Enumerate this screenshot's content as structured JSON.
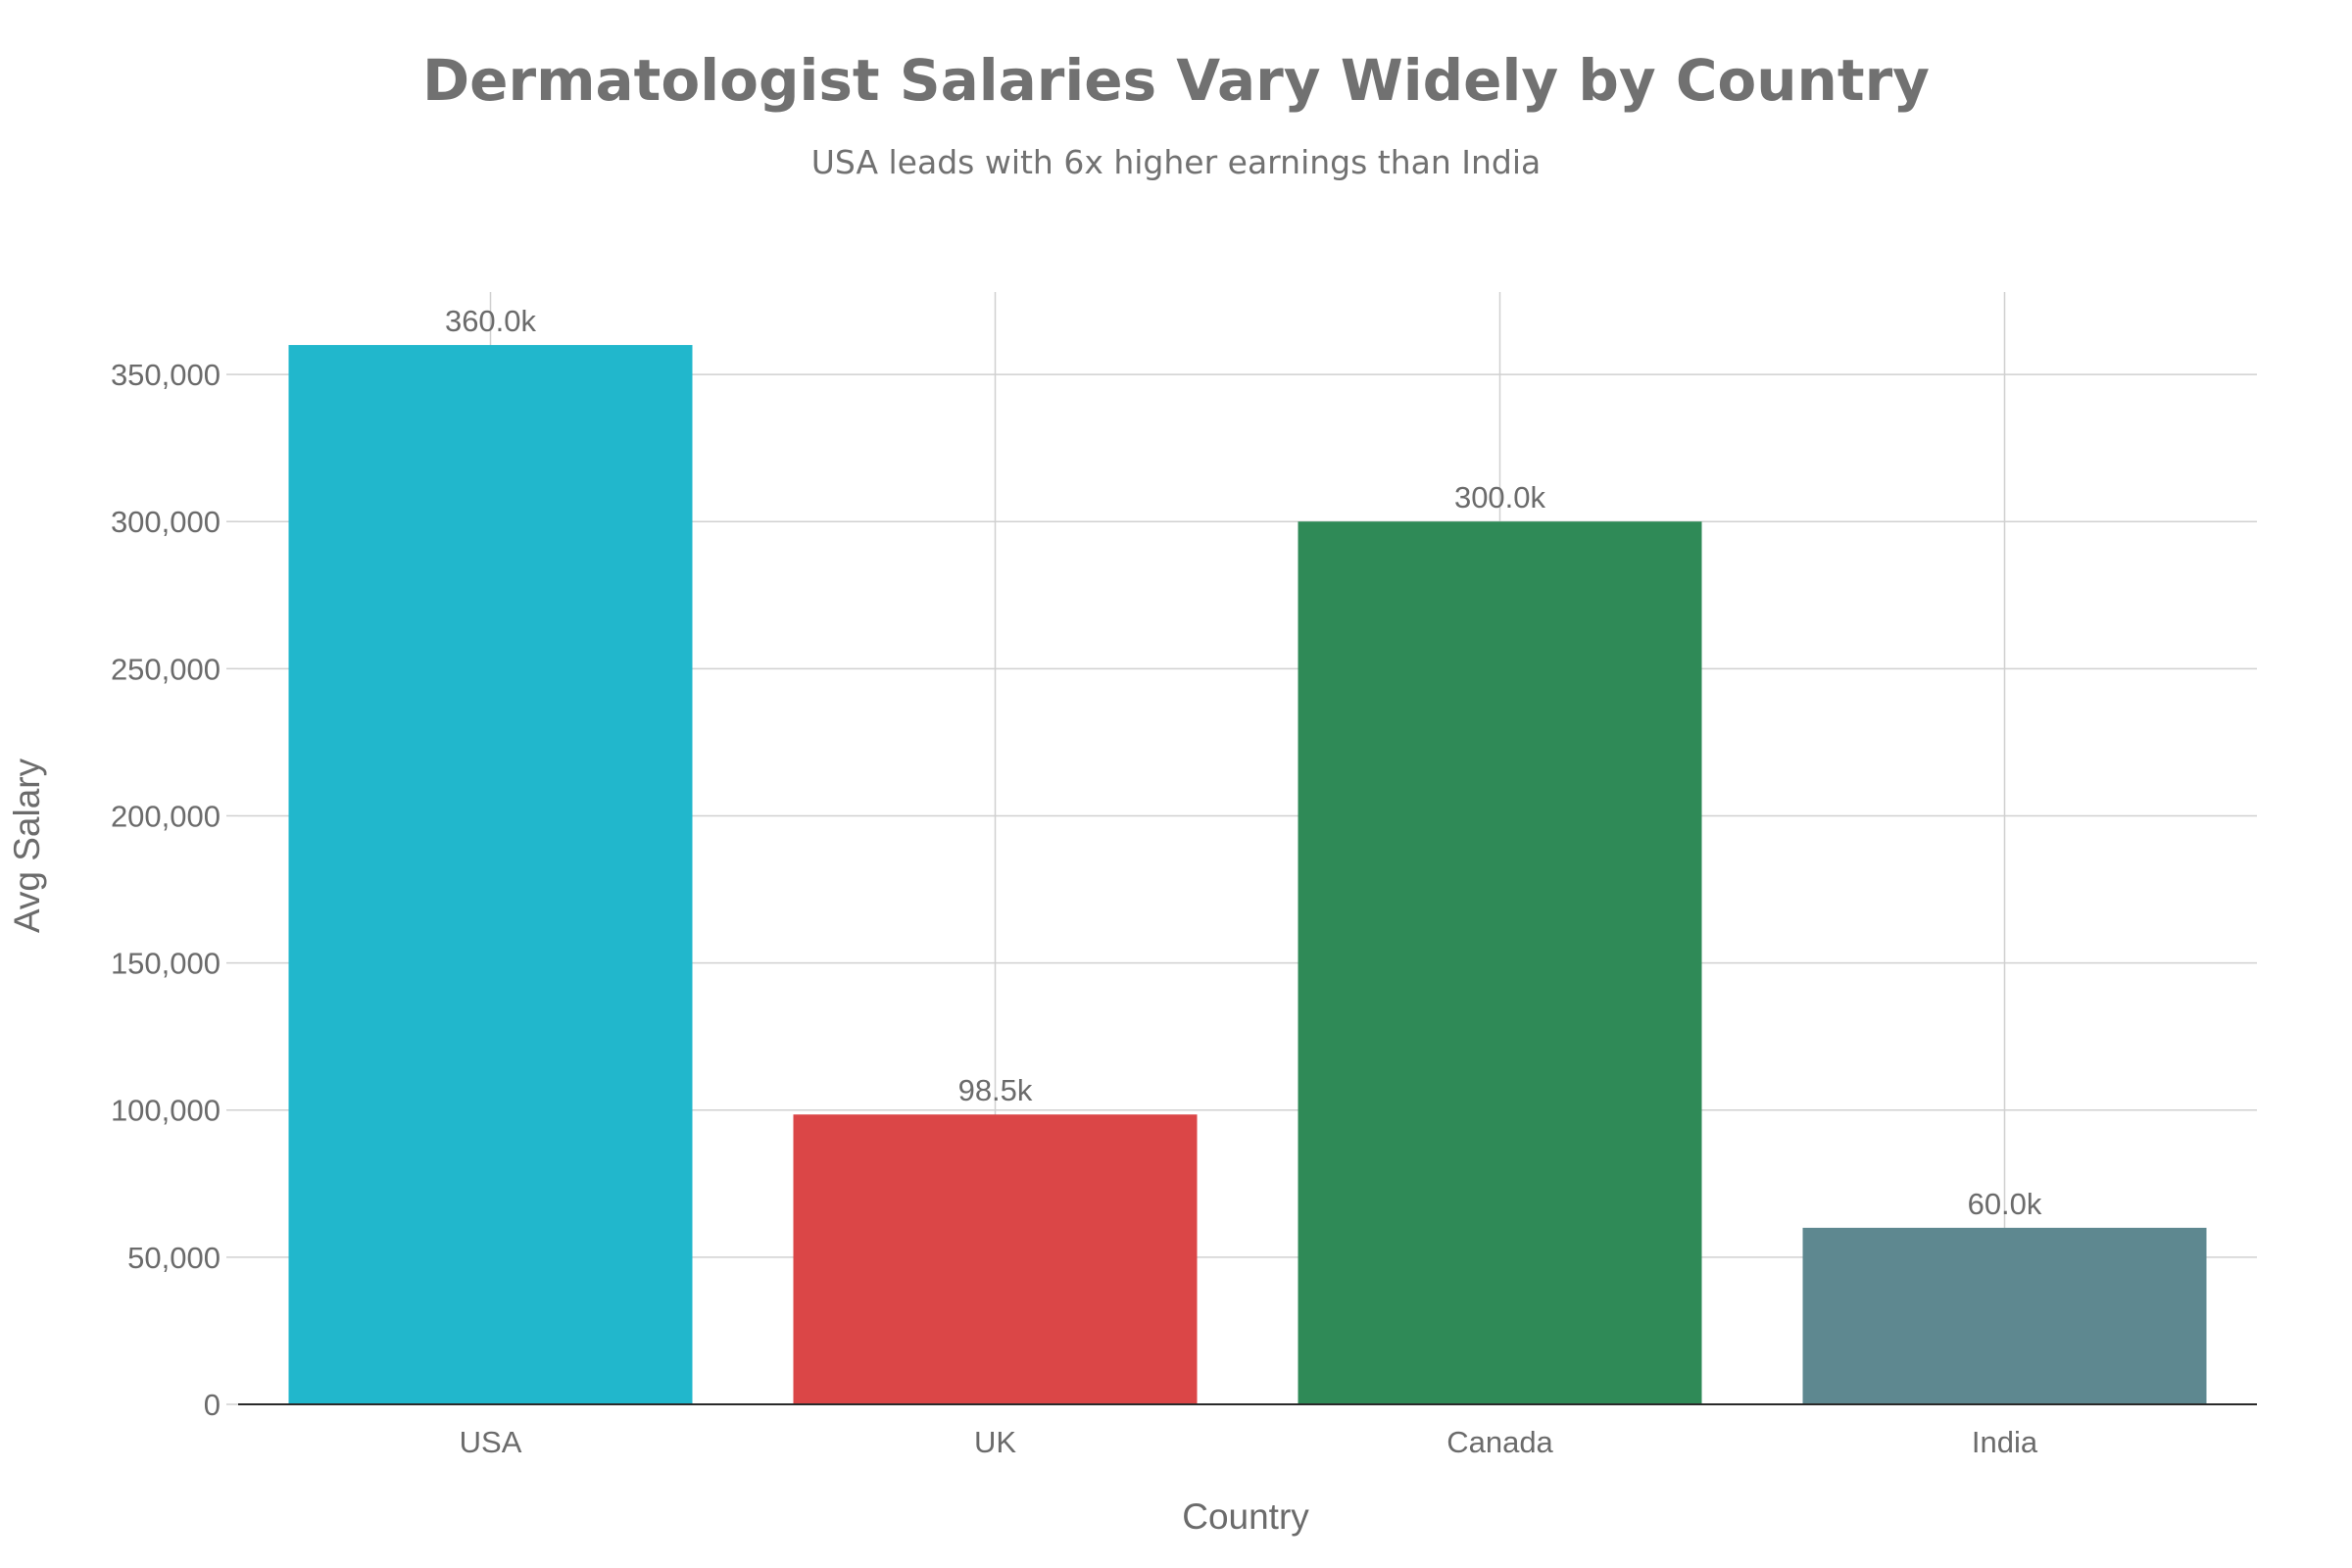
{
  "chart_data": {
    "type": "bar",
    "title": "Dermatologist Salaries Vary Widely by Country",
    "subtitle": "USA leads with 6x higher earnings than India",
    "xlabel": "Country",
    "ylabel": "Avg Salary",
    "categories": [
      "USA",
      "UK",
      "Canada",
      "India"
    ],
    "values": [
      360000,
      98500,
      300000,
      60000
    ],
    "data_labels": [
      "360.0k",
      "98.5k",
      "300.0k",
      "60.0k"
    ],
    "colors": [
      "#21b7cc",
      "#db4647",
      "#2f8a57",
      "#5e8890"
    ],
    "ylim": [
      0,
      378000
    ],
    "yticks": [
      0,
      50000,
      100000,
      150000,
      200000,
      250000,
      300000,
      350000
    ],
    "ytick_labels": [
      "0",
      "50,000",
      "100,000",
      "150,000",
      "200,000",
      "250,000",
      "300,000",
      "350,000"
    ],
    "grid": true,
    "legend": "none"
  }
}
